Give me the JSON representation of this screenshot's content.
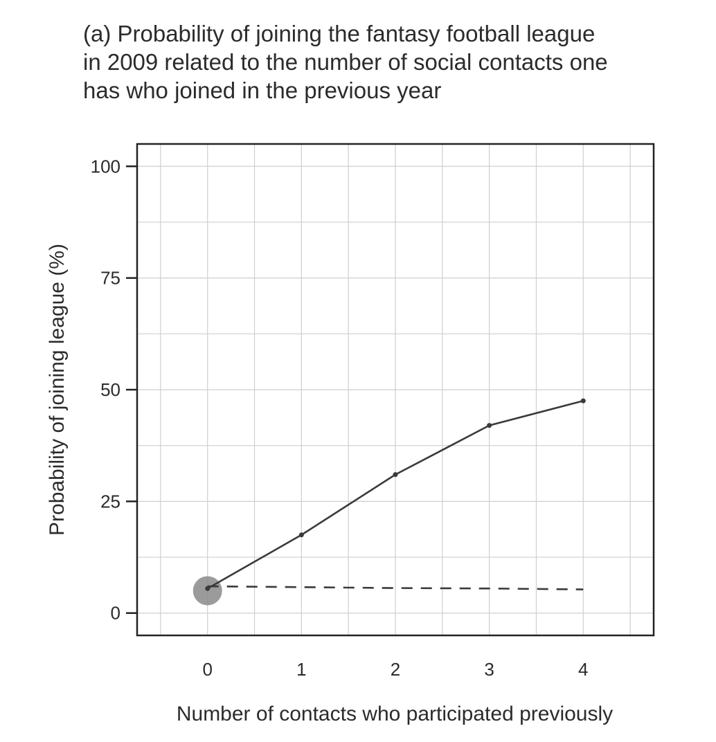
{
  "chart_data": {
    "type": "line",
    "title_lines": [
      "(a) Probability of joining the fantasy football league",
      "in 2009 related to the number of social contacts one",
      "has who joined in the previous year"
    ],
    "xlabel": "Number of contacts who participated previously",
    "ylabel": "Probability of joining league (%)",
    "x_ticks": [
      0,
      1,
      2,
      3,
      4
    ],
    "y_ticks": [
      0,
      25,
      50,
      75,
      100
    ],
    "xlim": [
      -0.75,
      4.75
    ],
    "ylim": [
      -5,
      105
    ],
    "grid": true,
    "series": [
      {
        "style": "solid",
        "x": [
          0,
          1,
          2,
          3,
          4
        ],
        "values": [
          5.5,
          17.5,
          31,
          42,
          47.5
        ]
      },
      {
        "style": "dashed",
        "x": [
          0,
          1,
          2,
          3,
          4
        ],
        "values": [
          6,
          5.8,
          5.6,
          5.5,
          5.3
        ]
      }
    ],
    "highlight_point": {
      "x": 0,
      "y": 5
    },
    "colors": {
      "line": "#3a3a3a",
      "grid": "#cfcfcf",
      "marker": "#8a8a8a",
      "frame": "#222222"
    }
  }
}
